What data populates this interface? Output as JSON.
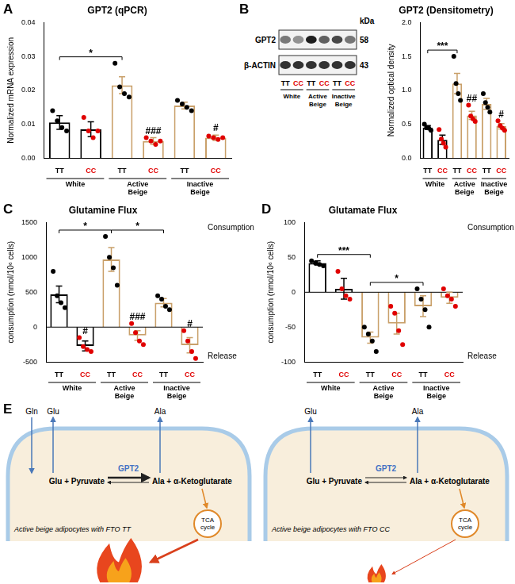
{
  "chart_data": [
    {
      "panel": "A",
      "type": "bar",
      "title": "GPT2 (qPCR)",
      "y_label": "Normalized mRNA expression",
      "categories": [
        "TT",
        "CC",
        "TT",
        "CC",
        "TT",
        "CC"
      ],
      "groups": [
        "White",
        "Active Beige",
        "Inactive Beige"
      ],
      "values": [
        0.0105,
        0.0085,
        0.0215,
        0.005,
        0.0155,
        0.006
      ],
      "errors": [
        0.002,
        0.0022,
        0.0025,
        0.001,
        0.001,
        0.0008
      ],
      "points": [
        {
          "values": [
            0.014,
            0.011,
            0.009,
            0.008
          ],
          "color": "#000000"
        },
        {
          "values": [
            0.012,
            0.008,
            0.006,
            0.008
          ],
          "color": "#e00000"
        },
        {
          "values": [
            0.028,
            0.021,
            0.019,
            0.018
          ],
          "color": "#000000"
        },
        {
          "values": [
            0.006,
            0.005,
            0.004,
            0.005
          ],
          "color": "#e00000"
        },
        {
          "values": [
            0.017,
            0.016,
            0.015,
            0.014
          ],
          "color": "#000000"
        },
        {
          "values": [
            0.0065,
            0.006,
            0.0055,
            0.006
          ],
          "color": "#e00000"
        }
      ],
      "colors": [
        "#000000",
        "#000000",
        "#c9a06a",
        "#c9a06a",
        "#c9a06a",
        "#c9a06a"
      ],
      "ylim": [
        0,
        0.04
      ],
      "yticks": [
        {
          "value": 0,
          "label": "0.00"
        },
        {
          "value": 0.01,
          "label": "0.01"
        },
        {
          "value": 0.02,
          "label": "0.02"
        },
        {
          "value": 0.03,
          "label": "0.03"
        },
        {
          "value": 0.04,
          "label": "0.04"
        }
      ],
      "grid": false,
      "annotations": [
        {
          "text": "*",
          "from": 0,
          "to": 2
        },
        {
          "text": "###",
          "at": 3
        },
        {
          "text": "#",
          "at": 5
        }
      ]
    },
    {
      "panel": "B",
      "type": "bar",
      "title": "GPT2 (Densitometry)",
      "y_label": "Normalized optical density",
      "categories": [
        "TT",
        "CC",
        "TT",
        "CC",
        "TT",
        "CC"
      ],
      "groups": [
        "White",
        "Active Beige",
        "Inactive Beige"
      ],
      "values": [
        0.45,
        0.27,
        1.1,
        0.63,
        0.8,
        0.47
      ],
      "errors": [
        0.03,
        0.07,
        0.15,
        0.06,
        0.08,
        0.04
      ],
      "points": [
        {
          "values": [
            0.5,
            0.45,
            0.44,
            0.41
          ],
          "color": "#000000"
        },
        {
          "values": [
            0.42,
            0.28,
            0.22,
            0.16
          ],
          "color": "#e00000"
        },
        {
          "values": [
            1.5,
            1.1,
            0.95,
            0.85
          ],
          "color": "#000000"
        },
        {
          "values": [
            0.78,
            0.62,
            0.58,
            0.54
          ],
          "color": "#e00000"
        },
        {
          "values": [
            0.95,
            0.82,
            0.75,
            0.68
          ],
          "color": "#000000"
        },
        {
          "values": [
            0.55,
            0.48,
            0.44,
            0.41
          ],
          "color": "#e00000"
        }
      ],
      "colors": [
        "#000000",
        "#000000",
        "#c9a06a",
        "#c9a06a",
        "#c9a06a",
        "#c9a06a"
      ],
      "ylim": [
        0,
        2
      ],
      "yticks": [
        {
          "value": 0,
          "label": "0.0"
        },
        {
          "value": 0.5,
          "label": "0.5"
        },
        {
          "value": 1,
          "label": "1.0"
        },
        {
          "value": 1.5,
          "label": "1.5"
        },
        {
          "value": 2,
          "label": "2.0"
        }
      ],
      "grid": false,
      "annotations": [
        {
          "text": "***",
          "from": 0,
          "to": 2
        },
        {
          "text": "##",
          "at": 3
        },
        {
          "text": "#",
          "at": 5
        }
      ]
    },
    {
      "panel": "C",
      "type": "bar",
      "title": "Glutamine Flux",
      "y_label": "consumption (nmol/10⁶ cells)",
      "corner_texts": {
        "top": "Consumption",
        "bottom": "Release"
      },
      "categories": [
        "TT",
        "CC",
        "TT",
        "CC",
        "TT",
        "CC"
      ],
      "groups": [
        "White",
        "Active Beige",
        "Inactive Beige"
      ],
      "values": [
        470,
        -270,
        970,
        -120,
        350,
        -260
      ],
      "errors": [
        120,
        70,
        170,
        70,
        60,
        110
      ],
      "points": [
        {
          "values": [
            800,
            450,
            350,
            280
          ],
          "color": "#000000"
        },
        {
          "values": [
            -150,
            -280,
            -320,
            -350
          ],
          "color": "#e00000"
        },
        {
          "values": [
            1300,
            1000,
            850,
            600
          ],
          "color": "#000000"
        },
        {
          "values": [
            50,
            -80,
            -200,
            -250
          ],
          "color": "#e00000"
        },
        {
          "values": [
            450,
            400,
            300,
            250
          ],
          "color": "#000000"
        },
        {
          "values": [
            -50,
            -200,
            -350,
            -450
          ],
          "color": "#e00000"
        }
      ],
      "colors": [
        "#000000",
        "#000000",
        "#c9a06a",
        "#c9a06a",
        "#c9a06a",
        "#c9a06a"
      ],
      "ylim": [
        -500,
        1500
      ],
      "yticks": [
        -500,
        0,
        500,
        1000,
        1500
      ],
      "grid": false,
      "annotations": [
        {
          "text": "*",
          "from": 0,
          "to": 2
        },
        {
          "text": "*",
          "from": 2,
          "to": 4
        },
        {
          "text": "#",
          "at": 1
        },
        {
          "text": "###",
          "at": 3
        },
        {
          "text": "#",
          "at": 5
        }
      ]
    },
    {
      "panel": "D",
      "type": "bar",
      "title": "Glutamate Flux",
      "y_label": "consumption (nmol/10⁶ cells)",
      "corner_texts": {
        "top": "Consumption",
        "bottom": "Release"
      },
      "categories": [
        "TT",
        "CC",
        "TT",
        "CC",
        "TT",
        "CC"
      ],
      "groups": [
        "White",
        "Active Beige",
        "Inactive Beige"
      ],
      "values": [
        42,
        5,
        -65,
        -45,
        -20,
        -8
      ],
      "errors": [
        3,
        15,
        8,
        15,
        15,
        8
      ],
      "points": [
        {
          "values": [
            45,
            42,
            40,
            38
          ],
          "color": "#000000"
        },
        {
          "values": [
            30,
            5,
            -5,
            -10
          ],
          "color": "#e00000"
        },
        {
          "values": [
            -50,
            -60,
            -70,
            -85
          ],
          "color": "#000000"
        },
        {
          "values": [
            -20,
            -30,
            -55,
            -75
          ],
          "color": "#e00000"
        },
        {
          "values": [
            5,
            -10,
            -25,
            -50
          ],
          "color": "#000000"
        },
        {
          "values": [
            5,
            -5,
            -10,
            -20
          ],
          "color": "#e00000"
        }
      ],
      "colors": [
        "#000000",
        "#000000",
        "#c9a06a",
        "#c9a06a",
        "#c9a06a",
        "#c9a06a"
      ],
      "ylim": [
        -100,
        100
      ],
      "yticks": [
        -100,
        -50,
        0,
        50,
        100
      ],
      "grid": false,
      "annotations": [
        {
          "text": "***",
          "from": 0,
          "to": 2
        },
        {
          "text": "*",
          "from": 2,
          "to": 4
        }
      ]
    }
  ],
  "blot": {
    "unit": "kDa",
    "rows": [
      {
        "label": "GPT2",
        "kda": 58
      },
      {
        "label": "β-ACTIN",
        "kda": 43
      }
    ],
    "lanes": [
      "TT",
      "CC",
      "TT",
      "CC",
      "TT",
      "CC"
    ],
    "colors": [
      "#000000",
      "#e00000",
      "#000000",
      "#e00000",
      "#000000",
      "#e00000"
    ],
    "groups": [
      "White",
      "Active Beige",
      "Inactive Beige"
    ]
  },
  "diagram": {
    "panel": "E",
    "cells": [
      {
        "outside": [
          "Gln",
          "Glu",
          "Ala"
        ],
        "enzyme": "GPT2",
        "substrates": "Glu + Pyruvate",
        "products": "Ala + α-Ketoglutarate",
        "sink": "TCA cycle",
        "caption": "Active beige adipocytes with FTO TT"
      },
      {
        "outside": [
          "Glu",
          "Ala"
        ],
        "enzyme": "GPT2",
        "substrates": "Glu + Pyruvate",
        "products": "Ala + α-Ketoglutarate",
        "sink": "TCA cycle",
        "caption": "Active beige adipocytes with FTO CC"
      }
    ]
  }
}
